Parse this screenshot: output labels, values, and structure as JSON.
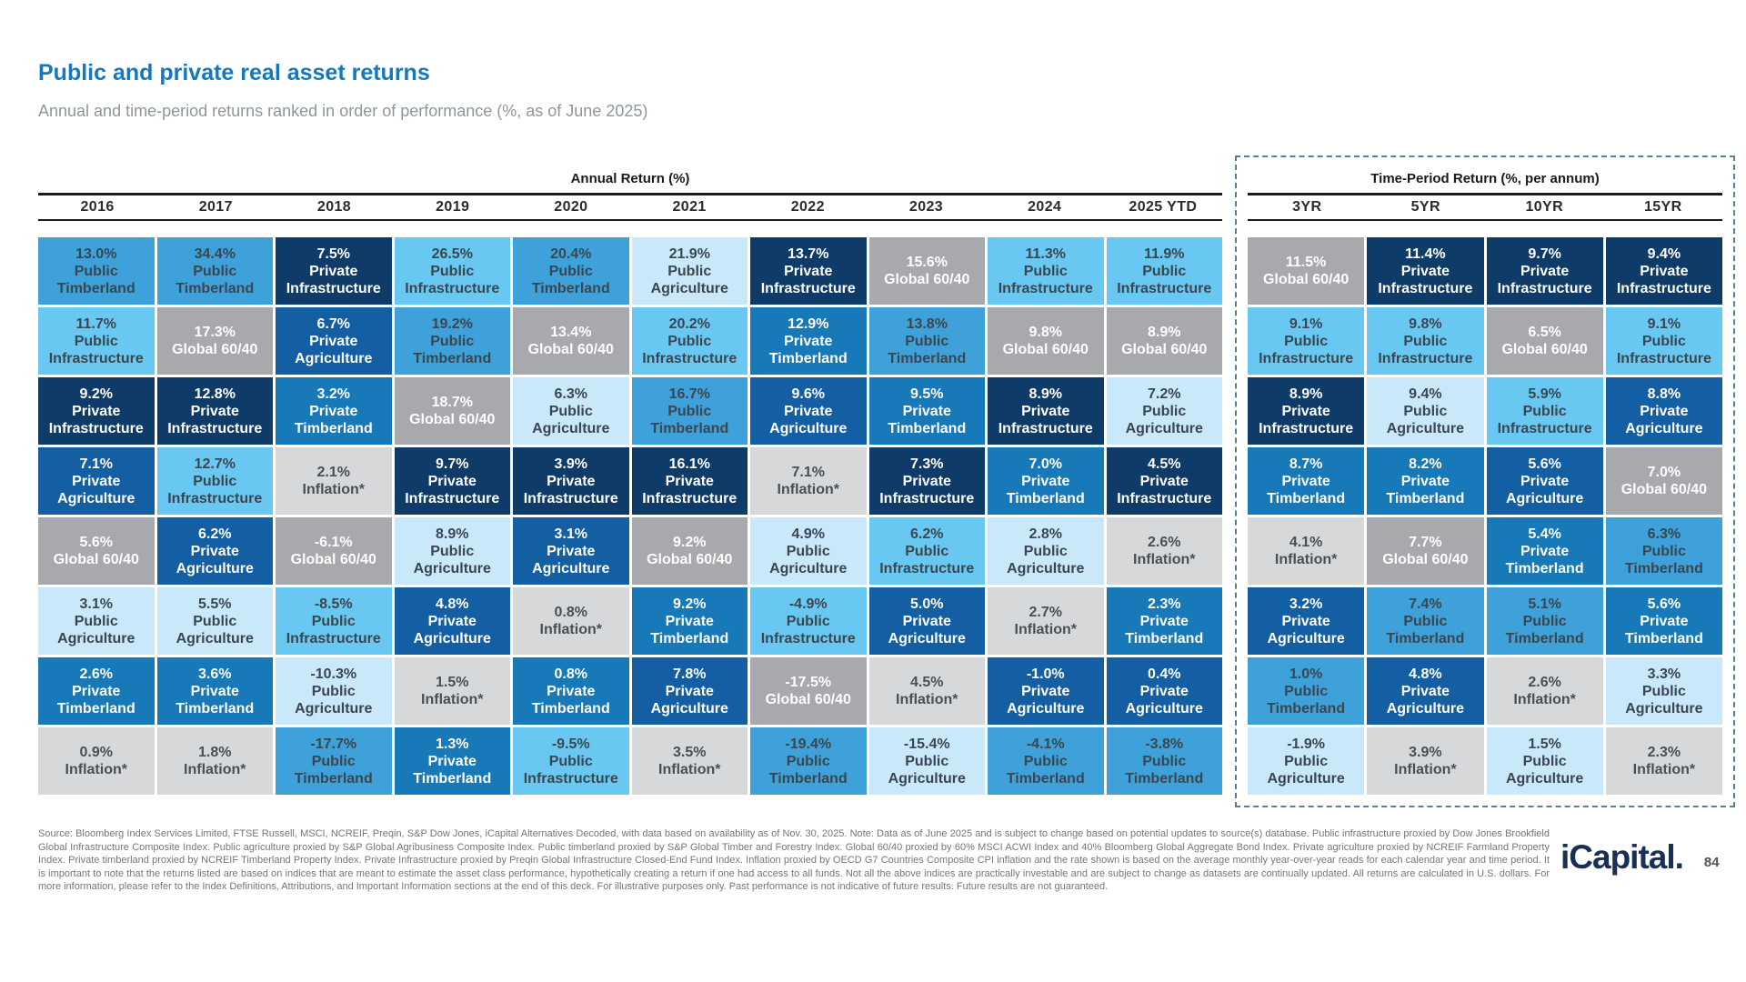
{
  "page": {
    "title": "Public and private real asset returns",
    "subtitle": "Annual and time-period returns ranked in order of performance (%, as of June 2025)",
    "brand": "iCapital",
    "brand_mark": ".",
    "page_number": "84"
  },
  "colors": {
    "title_accent": "#1578BE",
    "subtitle_gray": "#8C969C",
    "dashed_border": "#5B7E93",
    "footer_gray": "#73767A",
    "logo_navy": "#1A2F55"
  },
  "assets": {
    "pub_tim": {
      "label": "Public Timberland",
      "bg": "#3EA1D9",
      "fg": "#3A4650"
    },
    "pub_inf": {
      "label": "Public Infrastructure",
      "bg": "#69C8F1",
      "fg": "#3A4650"
    },
    "pub_agr": {
      "label": "Public Agriculture",
      "bg": "#C9E8FA",
      "fg": "#3A4650"
    },
    "prv_tim": {
      "label": "Private Timberland",
      "bg": "#1779B7",
      "fg": "#FFFFFF"
    },
    "prv_inf": {
      "label": "Private Infrastructure",
      "bg": "#0F3B68",
      "fg": "#FFFFFF"
    },
    "prv_agr": {
      "label": "Private Agriculture",
      "bg": "#145FA3",
      "fg": "#FFFFFF"
    },
    "g6040": {
      "label": "Global 60/40",
      "bg": "#A7A9AC",
      "fg": "#FFFFFF"
    },
    "infl": {
      "label": "Inflation*",
      "bg": "#D7D8D9",
      "fg": "#474F57"
    }
  },
  "chart_data": {
    "type": "table",
    "annual": {
      "title": "Annual Return (%)",
      "columns": [
        {
          "label": "2016",
          "cells": [
            [
              "13.0%",
              "pub_tim"
            ],
            [
              "11.7%",
              "pub_inf"
            ],
            [
              "9.2%",
              "prv_inf"
            ],
            [
              "7.1%",
              "prv_agr"
            ],
            [
              "5.6%",
              "g6040"
            ],
            [
              "3.1%",
              "pub_agr"
            ],
            [
              "2.6%",
              "prv_tim"
            ],
            [
              "0.9%",
              "infl"
            ]
          ]
        },
        {
          "label": "2017",
          "cells": [
            [
              "34.4%",
              "pub_tim"
            ],
            [
              "17.3%",
              "g6040"
            ],
            [
              "12.8%",
              "prv_inf"
            ],
            [
              "12.7%",
              "pub_inf"
            ],
            [
              "6.2%",
              "prv_agr"
            ],
            [
              "5.5%",
              "pub_agr"
            ],
            [
              "3.6%",
              "prv_tim"
            ],
            [
              "1.8%",
              "infl"
            ]
          ]
        },
        {
          "label": "2018",
          "cells": [
            [
              "7.5%",
              "prv_inf"
            ],
            [
              "6.7%",
              "prv_agr"
            ],
            [
              "3.2%",
              "prv_tim"
            ],
            [
              "2.1%",
              "infl"
            ],
            [
              "-6.1%",
              "g6040"
            ],
            [
              "-8.5%",
              "pub_inf"
            ],
            [
              "-10.3%",
              "pub_agr"
            ],
            [
              "-17.7%",
              "pub_tim"
            ]
          ]
        },
        {
          "label": "2019",
          "cells": [
            [
              "26.5%",
              "pub_inf"
            ],
            [
              "19.2%",
              "pub_tim"
            ],
            [
              "18.7%",
              "g6040"
            ],
            [
              "9.7%",
              "prv_inf"
            ],
            [
              "8.9%",
              "pub_agr"
            ],
            [
              "4.8%",
              "prv_agr"
            ],
            [
              "1.5%",
              "infl"
            ],
            [
              "1.3%",
              "prv_tim"
            ]
          ]
        },
        {
          "label": "2020",
          "cells": [
            [
              "20.4%",
              "pub_tim"
            ],
            [
              "13.4%",
              "g6040"
            ],
            [
              "6.3%",
              "pub_agr"
            ],
            [
              "3.9%",
              "prv_inf"
            ],
            [
              "3.1%",
              "prv_agr"
            ],
            [
              "0.8%",
              "infl"
            ],
            [
              "0.8%",
              "prv_tim"
            ],
            [
              "-9.5%",
              "pub_inf"
            ]
          ]
        },
        {
          "label": "2021",
          "cells": [
            [
              "21.9%",
              "pub_agr"
            ],
            [
              "20.2%",
              "pub_inf"
            ],
            [
              "16.7%",
              "pub_tim"
            ],
            [
              "16.1%",
              "prv_inf"
            ],
            [
              "9.2%",
              "g6040"
            ],
            [
              "9.2%",
              "prv_tim"
            ],
            [
              "7.8%",
              "prv_agr"
            ],
            [
              "3.5%",
              "infl"
            ]
          ]
        },
        {
          "label": "2022",
          "cells": [
            [
              "13.7%",
              "prv_inf"
            ],
            [
              "12.9%",
              "prv_tim"
            ],
            [
              "9.6%",
              "prv_agr"
            ],
            [
              "7.1%",
              "infl"
            ],
            [
              "4.9%",
              "pub_agr"
            ],
            [
              "-4.9%",
              "pub_inf"
            ],
            [
              "-17.5%",
              "g6040"
            ],
            [
              "-19.4%",
              "pub_tim"
            ]
          ]
        },
        {
          "label": "2023",
          "cells": [
            [
              "15.6%",
              "g6040"
            ],
            [
              "13.8%",
              "pub_tim"
            ],
            [
              "9.5%",
              "prv_tim"
            ],
            [
              "7.3%",
              "prv_inf"
            ],
            [
              "6.2%",
              "pub_inf"
            ],
            [
              "5.0%",
              "prv_agr"
            ],
            [
              "4.5%",
              "infl"
            ],
            [
              "-15.4%",
              "pub_agr"
            ]
          ]
        },
        {
          "label": "2024",
          "cells": [
            [
              "11.3%",
              "pub_inf"
            ],
            [
              "9.8%",
              "g6040"
            ],
            [
              "8.9%",
              "prv_inf"
            ],
            [
              "7.0%",
              "prv_tim"
            ],
            [
              "2.8%",
              "pub_agr"
            ],
            [
              "2.7%",
              "infl"
            ],
            [
              "-1.0%",
              "prv_agr"
            ],
            [
              "-4.1%",
              "pub_tim"
            ]
          ]
        },
        {
          "label": "2025 YTD",
          "cells": [
            [
              "11.9%",
              "pub_inf"
            ],
            [
              "8.9%",
              "g6040"
            ],
            [
              "7.2%",
              "pub_agr"
            ],
            [
              "4.5%",
              "prv_inf"
            ],
            [
              "2.6%",
              "infl"
            ],
            [
              "2.3%",
              "prv_tim"
            ],
            [
              "0.4%",
              "prv_agr"
            ],
            [
              "-3.8%",
              "pub_tim"
            ]
          ]
        }
      ]
    },
    "time_period": {
      "title": "Time-Period Return (%, per annum)",
      "columns": [
        {
          "label": "3YR",
          "cells": [
            [
              "11.5%",
              "g6040"
            ],
            [
              "9.1%",
              "pub_inf"
            ],
            [
              "8.9%",
              "prv_inf"
            ],
            [
              "8.7%",
              "prv_tim"
            ],
            [
              "4.1%",
              "infl"
            ],
            [
              "3.2%",
              "prv_agr"
            ],
            [
              "1.0%",
              "pub_tim"
            ],
            [
              "-1.9%",
              "pub_agr"
            ]
          ]
        },
        {
          "label": "5YR",
          "cells": [
            [
              "11.4%",
              "prv_inf"
            ],
            [
              "9.8%",
              "pub_inf"
            ],
            [
              "9.4%",
              "pub_agr"
            ],
            [
              "8.2%",
              "prv_tim"
            ],
            [
              "7.7%",
              "g6040"
            ],
            [
              "7.4%",
              "pub_tim"
            ],
            [
              "4.8%",
              "prv_agr"
            ],
            [
              "3.9%",
              "infl"
            ]
          ]
        },
        {
          "label": "10YR",
          "cells": [
            [
              "9.7%",
              "prv_inf"
            ],
            [
              "6.5%",
              "g6040"
            ],
            [
              "5.9%",
              "pub_inf"
            ],
            [
              "5.6%",
              "prv_agr"
            ],
            [
              "5.4%",
              "prv_tim"
            ],
            [
              "5.1%",
              "pub_tim"
            ],
            [
              "2.6%",
              "infl"
            ],
            [
              "1.5%",
              "pub_agr"
            ]
          ]
        },
        {
          "label": "15YR",
          "cells": [
            [
              "9.4%",
              "prv_inf"
            ],
            [
              "9.1%",
              "pub_inf"
            ],
            [
              "8.8%",
              "prv_agr"
            ],
            [
              "7.0%",
              "g6040"
            ],
            [
              "6.3%",
              "pub_tim"
            ],
            [
              "5.6%",
              "prv_tim"
            ],
            [
              "3.3%",
              "pub_agr"
            ],
            [
              "2.3%",
              "infl"
            ]
          ]
        }
      ]
    }
  },
  "footer": {
    "text": "Source: Bloomberg Index Services Limited, FTSE Russell, MSCI, NCREIF, Preqin, S&P Dow Jones, iCapital Alternatives Decoded, with data based on availability as of Nov. 30, 2025. Note: Data as of June 2025 and is subject to change based on potential updates to source(s) database. Public infrastructure proxied by Dow Jones Brookfield Global Infrastructure Composite Index. Public agriculture proxied by S&P Global Agribusiness Composite Index. Public timberland proxied by S&P Global Timber and Forestry Index. Global 60/40 proxied by 60% MSCI ACWI Index and 40% Bloomberg Global Aggregate Bond Index. Private agriculture proxied by NCREIF Farmland Property Index. Private timberland proxied by NCREIF Timberland Property Index. Private Infrastructure proxied by Preqin Global Infrastructure Closed-End Fund Index. Inflation proxied by OECD G7 Countries Composite CPI inflation and the rate shown is based on the average monthly year-over-year reads for each calendar year and time period. It is important to note that the returns listed are based on indices that are meant to estimate the asset class performance, hypothetically creating a return if one had access to all funds. Not all the above indices are practically investable and are subject to change as datasets are continually updated. All returns are calculated in U.S. dollars. For more information, please refer to the Index Definitions, Attributions, and Important Information sections at the end of this deck. For illustrative purposes only. Past performance is not indicative of future results. Future results are not guaranteed."
  }
}
